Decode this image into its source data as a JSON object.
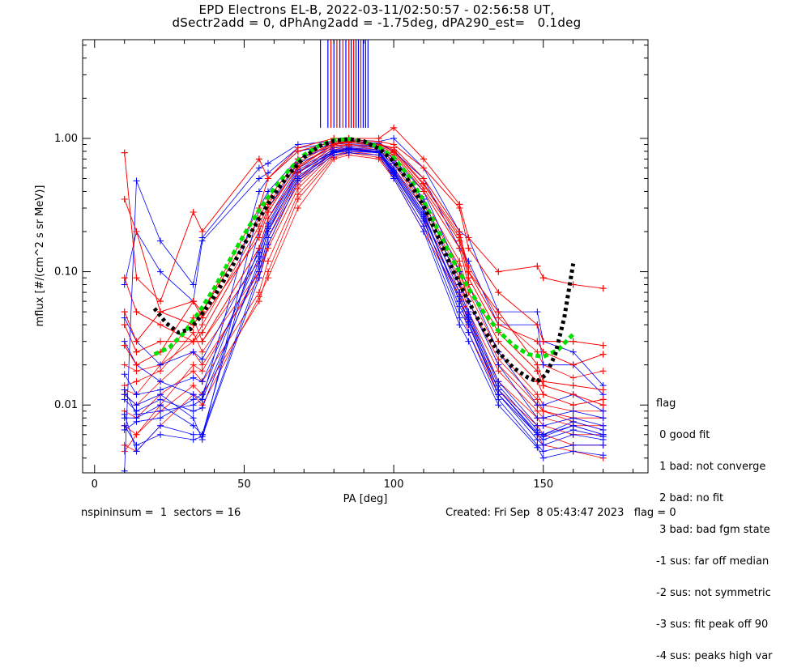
{
  "title_line1": "EPD Electrons EL-B, 2022-03-11/02:50:57 - 02:56:58 UT,",
  "title_line2": "dSectr2add = 0, dPhAng2add = -1.75deg, dPA290_est=   0.1deg",
  "legend": {
    "heading": "flag",
    "items": [
      " 0 good fit",
      " 1 bad: not converge",
      " 2 bad: no fit",
      " 3 bad: bad fgm state",
      "-1 sus: far off median",
      "-2 sus: not symmetric",
      "-3 sus: fit peak off 90",
      "-4 sus: peaks high var"
    ]
  },
  "footer": {
    "left": "nspininsum =  1  sectors = 16",
    "right": "Created: Fri Sep  8 05:43:47 2023   flag = 0"
  },
  "colors": {
    "red": "#ff0000",
    "blue": "#0000ff",
    "green": "#00e000",
    "black": "#000000"
  },
  "chart_data": {
    "type": "scatter",
    "xlabel": "PA [deg]",
    "ylabel": "mflux [#/(cm^2 s sr MeV)]",
    "xlim": [
      -4,
      185
    ],
    "ylim": [
      0.0031,
      5.5
    ],
    "yscale": "log",
    "xticks": [
      0,
      50,
      100,
      150
    ],
    "yticks": [
      0.01,
      0.1,
      1.0
    ],
    "ytick_labels": [
      "0.01",
      "0.10",
      "1.00"
    ],
    "x_tick_labels": [
      "0",
      "50",
      "100",
      "150"
    ],
    "pa_bins": [
      10,
      14,
      22,
      33,
      36,
      55,
      58,
      68,
      80,
      85,
      95,
      100,
      110,
      122,
      125,
      135,
      148,
      150,
      160,
      170
    ],
    "red_profiles": [
      [
        0.78,
        0.09,
        0.06,
        0.28,
        0.2,
        0.7,
        0.5,
        0.85,
        1.0,
        1.0,
        1.0,
        1.2,
        0.7,
        0.32,
        0.18,
        0.1,
        0.11,
        0.09,
        0.08,
        0.075
      ],
      [
        0.35,
        0.2,
        0.05,
        0.06,
        0.05,
        0.3,
        0.5,
        0.8,
        0.95,
        0.97,
        0.95,
        0.9,
        0.6,
        0.3,
        0.15,
        0.07,
        0.04,
        0.03,
        0.03,
        0.028
      ],
      [
        0.09,
        0.05,
        0.04,
        0.03,
        0.035,
        0.2,
        0.3,
        0.6,
        0.9,
        0.95,
        0.9,
        0.8,
        0.45,
        0.18,
        0.1,
        0.04,
        0.03,
        0.025,
        0.02,
        0.024
      ],
      [
        0.05,
        0.03,
        0.05,
        0.04,
        0.05,
        0.25,
        0.35,
        0.7,
        0.92,
        0.95,
        0.9,
        0.85,
        0.5,
        0.2,
        0.1,
        0.05,
        0.02,
        0.015,
        0.014,
        0.013
      ],
      [
        0.04,
        0.025,
        0.03,
        0.03,
        0.03,
        0.15,
        0.25,
        0.55,
        0.88,
        0.9,
        0.85,
        0.75,
        0.4,
        0.15,
        0.08,
        0.03,
        0.015,
        0.012,
        0.01,
        0.011
      ],
      [
        0.028,
        0.02,
        0.025,
        0.06,
        0.045,
        0.18,
        0.28,
        0.62,
        0.9,
        0.93,
        0.88,
        0.78,
        0.42,
        0.17,
        0.09,
        0.035,
        0.018,
        0.014,
        0.012,
        0.01
      ],
      [
        0.02,
        0.018,
        0.02,
        0.045,
        0.03,
        0.12,
        0.2,
        0.5,
        0.85,
        0.9,
        0.85,
        0.7,
        0.35,
        0.12,
        0.07,
        0.025,
        0.012,
        0.01,
        0.009,
        0.009
      ],
      [
        0.014,
        0.015,
        0.018,
        0.035,
        0.025,
        0.1,
        0.18,
        0.45,
        0.8,
        0.85,
        0.8,
        0.65,
        0.3,
        0.1,
        0.06,
        0.02,
        0.01,
        0.009,
        0.008,
        0.008
      ],
      [
        0.012,
        0.01,
        0.015,
        0.025,
        0.02,
        0.09,
        0.15,
        0.42,
        0.78,
        0.83,
        0.78,
        0.6,
        0.28,
        0.09,
        0.05,
        0.018,
        0.009,
        0.008,
        0.007,
        0.007
      ],
      [
        0.009,
        0.008,
        0.012,
        0.018,
        0.015,
        0.07,
        0.12,
        0.38,
        0.75,
        0.8,
        0.75,
        0.55,
        0.25,
        0.08,
        0.045,
        0.015,
        0.008,
        0.007,
        0.006,
        0.006
      ],
      [
        0.007,
        0.006,
        0.009,
        0.014,
        0.012,
        0.06,
        0.1,
        0.35,
        0.72,
        0.78,
        0.72,
        0.52,
        0.22,
        0.07,
        0.04,
        0.013,
        0.007,
        0.006,
        0.005,
        0.005
      ],
      [
        0.005,
        0.0045,
        0.007,
        0.012,
        0.01,
        0.065,
        0.09,
        0.3,
        0.7,
        0.75,
        0.7,
        0.5,
        0.2,
        0.065,
        0.035,
        0.012,
        0.006,
        0.005,
        0.0045,
        0.004
      ],
      [
        0.013,
        0.012,
        0.02,
        0.03,
        0.04,
        0.22,
        0.32,
        0.66,
        0.92,
        0.96,
        0.92,
        0.82,
        0.46,
        0.19,
        0.11,
        0.045,
        0.025,
        0.02,
        0.016,
        0.018
      ],
      [
        0.0045,
        0.006,
        0.01,
        0.02,
        0.018,
        0.1,
        0.16,
        0.48,
        0.82,
        0.88,
        0.82,
        0.68,
        0.32,
        0.11,
        0.06,
        0.022,
        0.011,
        0.009,
        0.0075,
        0.0065
      ]
    ],
    "blue_profiles": [
      [
        0.0032,
        0.48,
        0.17,
        0.08,
        0.18,
        0.6,
        0.65,
        0.9,
        0.95,
        0.98,
        0.95,
        1.0,
        0.6,
        0.2,
        0.18,
        0.05,
        0.05,
        0.03,
        0.025,
        0.014
      ],
      [
        0.08,
        0.2,
        0.1,
        0.06,
        0.17,
        0.5,
        0.55,
        0.85,
        0.92,
        0.95,
        0.92,
        0.8,
        0.5,
        0.15,
        0.12,
        0.04,
        0.04,
        0.02,
        0.02,
        0.012
      ],
      [
        0.03,
        0.02,
        0.015,
        0.012,
        0.011,
        0.4,
        0.5,
        0.8,
        0.9,
        0.92,
        0.9,
        0.7,
        0.4,
        0.1,
        0.08,
        0.025,
        0.01,
        0.01,
        0.012,
        0.009
      ],
      [
        0.012,
        0.01,
        0.012,
        0.008,
        0.0055,
        0.3,
        0.4,
        0.7,
        0.88,
        0.9,
        0.88,
        0.65,
        0.35,
        0.08,
        0.06,
        0.02,
        0.008,
        0.008,
        0.009,
        0.008
      ],
      [
        0.008,
        0.008,
        0.01,
        0.007,
        0.006,
        0.2,
        0.3,
        0.65,
        0.85,
        0.87,
        0.85,
        0.6,
        0.3,
        0.07,
        0.05,
        0.015,
        0.007,
        0.007,
        0.008,
        0.007
      ],
      [
        0.0065,
        0.0075,
        0.008,
        0.011,
        0.012,
        0.15,
        0.25,
        0.6,
        0.82,
        0.85,
        0.82,
        0.58,
        0.28,
        0.06,
        0.045,
        0.013,
        0.006,
        0.006,
        0.007,
        0.006
      ],
      [
        0.011,
        0.009,
        0.011,
        0.009,
        0.0095,
        0.12,
        0.2,
        0.55,
        0.8,
        0.83,
        0.8,
        0.55,
        0.25,
        0.05,
        0.04,
        0.012,
        0.0055,
        0.005,
        0.006,
        0.0055
      ],
      [
        0.0085,
        0.0045,
        0.007,
        0.006,
        0.006,
        0.1,
        0.18,
        0.5,
        0.78,
        0.8,
        0.78,
        0.52,
        0.22,
        0.045,
        0.035,
        0.011,
        0.005,
        0.0045,
        0.005,
        0.005
      ],
      [
        0.007,
        0.005,
        0.006,
        0.0055,
        0.0058,
        0.09,
        0.16,
        0.48,
        0.75,
        0.78,
        0.75,
        0.5,
        0.2,
        0.04,
        0.03,
        0.01,
        0.0048,
        0.004,
        0.0045,
        0.0042
      ],
      [
        0.013,
        0.0085,
        0.009,
        0.01,
        0.011,
        0.11,
        0.21,
        0.52,
        0.78,
        0.82,
        0.78,
        0.54,
        0.24,
        0.055,
        0.042,
        0.012,
        0.006,
        0.0055,
        0.0065,
        0.0058
      ],
      [
        0.045,
        0.03,
        0.02,
        0.025,
        0.022,
        0.14,
        0.23,
        0.58,
        0.8,
        0.84,
        0.8,
        0.57,
        0.26,
        0.065,
        0.048,
        0.014,
        0.0065,
        0.006,
        0.0075,
        0.0065
      ],
      [
        0.017,
        0.012,
        0.013,
        0.016,
        0.015,
        0.13,
        0.22,
        0.56,
        0.79,
        0.83,
        0.79,
        0.56,
        0.27,
        0.06,
        0.044,
        0.013,
        0.0062,
        0.0058,
        0.007,
        0.006
      ]
    ],
    "vertical_marks": [
      {
        "x": 75.5,
        "color": "blue"
      },
      {
        "x": 78,
        "color": "blue"
      },
      {
        "x": 79,
        "color": "red"
      },
      {
        "x": 80,
        "color": "blue"
      },
      {
        "x": 81,
        "color": "red"
      },
      {
        "x": 82,
        "color": "blue"
      },
      {
        "x": 83,
        "color": "red"
      },
      {
        "x": 84,
        "color": "blue"
      },
      {
        "x": 85,
        "color": "red"
      },
      {
        "x": 85.8,
        "color": "blue"
      },
      {
        "x": 86.6,
        "color": "red"
      },
      {
        "x": 87.4,
        "color": "blue"
      },
      {
        "x": 88.2,
        "color": "blue"
      },
      {
        "x": 89,
        "color": "red"
      },
      {
        "x": 89.8,
        "color": "blue"
      },
      {
        "x": 90.6,
        "color": "blue"
      },
      {
        "x": 91.4,
        "color": "blue"
      }
    ],
    "vertical_marks_range": [
      1.2,
      5.5
    ],
    "green_fit": {
      "x": [
        20,
        25,
        30,
        35,
        40,
        45,
        50,
        55,
        60,
        65,
        70,
        75,
        80,
        85,
        90,
        95,
        100,
        105,
        110,
        115,
        120,
        125,
        130,
        135,
        140,
        145,
        150,
        155,
        160
      ],
      "y": [
        0.024,
        0.027,
        0.035,
        0.05,
        0.075,
        0.12,
        0.19,
        0.29,
        0.42,
        0.58,
        0.75,
        0.88,
        0.97,
        0.99,
        0.95,
        0.86,
        0.72,
        0.52,
        0.34,
        0.2,
        0.12,
        0.075,
        0.05,
        0.036,
        0.028,
        0.024,
        0.023,
        0.026,
        0.034
      ]
    },
    "black_fit": {
      "x": [
        20,
        24,
        28,
        32,
        35,
        40,
        45,
        50,
        55,
        60,
        65,
        70,
        75,
        80,
        85,
        90,
        95,
        100,
        105,
        110,
        115,
        120,
        125,
        130,
        135,
        140,
        145,
        148,
        151,
        154,
        157,
        160
      ],
      "y": [
        0.053,
        0.041,
        0.035,
        0.037,
        0.045,
        0.065,
        0.1,
        0.16,
        0.25,
        0.38,
        0.54,
        0.72,
        0.87,
        0.96,
        0.99,
        0.95,
        0.84,
        0.67,
        0.48,
        0.31,
        0.18,
        0.1,
        0.06,
        0.037,
        0.025,
        0.019,
        0.016,
        0.015,
        0.017,
        0.024,
        0.045,
        0.115
      ]
    }
  }
}
